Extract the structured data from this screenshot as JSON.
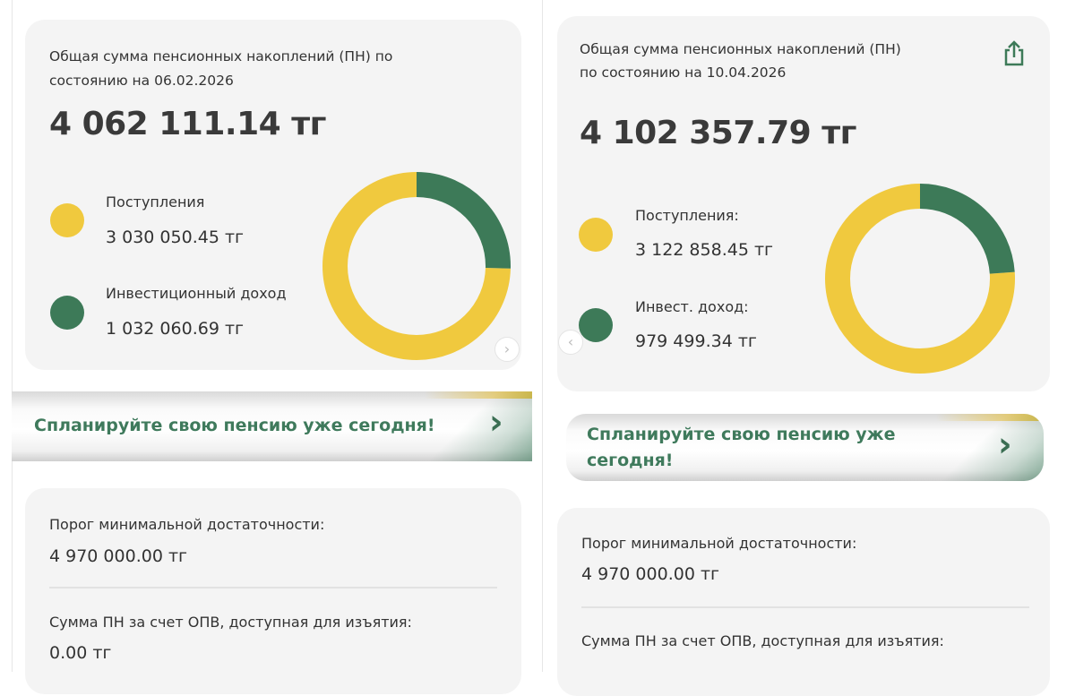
{
  "colors": {
    "contributions": "#f0c93e",
    "investment_income": "#3d7a58",
    "accent": "#3f7a5c"
  },
  "left": {
    "title_line1": "Общая сумма пенсионных накоплений (ПН) по",
    "title_line2": "состоянию на 06.02.2026",
    "total": "4 062 111.14 тг",
    "legend": [
      {
        "label": "Поступления",
        "value": "3 030 050.45 тг",
        "amount": 3030050.45
      },
      {
        "label": "Инвестиционный доход",
        "value": "1 032 060.69 тг",
        "amount": 1032060.69
      }
    ],
    "next_icon": "chevron-right-icon",
    "banner": "Спланируйте свою пенсию уже сегодня!",
    "threshold_label": "Порог минимальной достаточности:",
    "threshold_value": "4 970 000.00 тг",
    "withdraw_label": "Сумма ПН за счет ОПВ, доступная для изъятия:",
    "withdraw_value": "0.00 тг"
  },
  "right": {
    "title_line1": "Общая сумма пенсионных накоплений (ПН)",
    "title_line2": "по состоянию на 10.04.2026",
    "share_icon": "share-icon",
    "total": "4 102 357.79 тг",
    "legend": [
      {
        "label": "Поступления:",
        "value": "3 122 858.45 тг",
        "amount": 3122858.45
      },
      {
        "label": "Инвест. доход:",
        "value": "979 499.34 тг",
        "amount": 979499.34
      }
    ],
    "prev_icon": "chevron-left-icon",
    "banner_line1": "Спланируйте свою пенсию уже",
    "banner_line2": "сегодня!",
    "threshold_label": "Порог минимальной достаточности:",
    "threshold_value": "4 970 000.00 тг",
    "withdraw_label": "Сумма ПН за счет ОПВ, доступная для изъятия:"
  }
}
